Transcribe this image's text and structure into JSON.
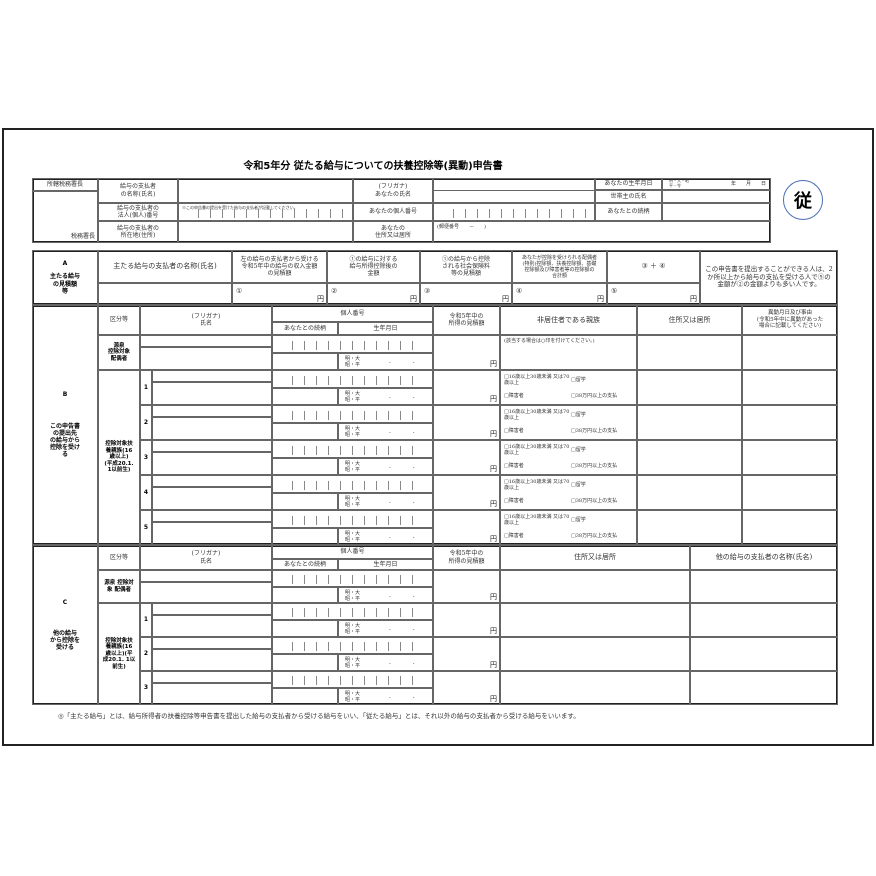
{
  "title": "令和5年分 従たる給与についての扶養控除等(異動)申告書",
  "stamp": "従",
  "colors": {
    "stamp_circle": "#4a6fb5",
    "border": "#222222"
  },
  "header": {
    "office_chief": "所轄税務署長",
    "tax_office_chief": "税務署長",
    "payer_name_label": "給与の支払者\nの名称(氏名)",
    "payer_number_label": "給与の支払者の\n法人(個人)番号",
    "payer_number_note": "※この申告書の提出を受けた給与の支払者が記載してください。",
    "payer_address_label": "給与の支払者の\n所在地(住所)",
    "your_name_label": "(フリガナ)\nあなたの氏名",
    "your_number_label": "あなたの個人番号",
    "your_address_label": "あなたの\n住所又は居所",
    "postal_label": "(郵便番号　　－　　)",
    "birth_label": "あなたの生年月日",
    "era_options": "明・大・昭\n平・令",
    "ymd": "年　　月　　日",
    "householder_label": "世帯主の氏名",
    "relation_label": "あなたとの続柄"
  },
  "section_a": {
    "letter": "A",
    "label": "主たる給与\nの見積額\n等",
    "payer_name_header": "主たる給与の支払者の名称(氏名)",
    "columns": [
      {
        "header": "左の給与の支払者から受ける\n令和5年中の給与の収入金額\nの見積額",
        "marker": "①"
      },
      {
        "header": "①の給与に対する\n給与所得控除後の\n金額",
        "marker": "②"
      },
      {
        "header": "①の給与から控除\nされる社会保険料\n等の見積額",
        "marker": "③"
      },
      {
        "header": "あなたが控除を受けられる配偶者\n(特別)控除額、扶養控除額、基礎\n控除額及び障害者等の控除額の\n合計額",
        "marker": "④"
      },
      {
        "header": "③ ＋ ④",
        "marker": "⑤"
      }
    ],
    "yen": "円",
    "note": "この申告書を提出することができる人は、2か所以上から給与の支払を受ける人で⑤の金額が②の金額よりも多い人です。"
  },
  "section_b": {
    "letter": "B",
    "label": "この申告書\nの提出先\nの給与から\n控除を受け\nる",
    "headers": {
      "category": "区分等",
      "name": "(フリガナ)\n氏名",
      "my_number": "個人番号",
      "relation": "あなたとの続柄",
      "birth": "生年月日",
      "income": "令和5年中の\n所得の見積額",
      "nonresident": "非居住者である親族",
      "address": "住所又は居所",
      "change": "異動月日及び事由\n(令和5年中に異動があった\n場合に記載してください)"
    },
    "spouse_label": "源泉\n控除対象\n配偶者",
    "spouse_note": "(該当する場合は○印を付けてください。)",
    "dependents_label": "控除対象扶\n養親族(16\n歳以上)\n(平成20.1.\n1以前生)",
    "era": "明・大\n昭・平",
    "yen": "円",
    "checkboxes": [
      "□16歳以上30歳未満 又は70歳以上",
      "□留学",
      "□障害者",
      "□38万円以上の支払"
    ],
    "rows": [
      "1",
      "2",
      "3",
      "4",
      "5"
    ]
  },
  "section_c": {
    "letter": "C",
    "label": "他の給与\nから控除を\n受ける",
    "headers": {
      "category": "区分等",
      "name": "(フリガナ)\n氏名",
      "my_number": "個人番号",
      "relation": "あなたとの続柄",
      "birth": "生年月日",
      "income": "令和5年中の\n所得の見積額",
      "address": "住所又は居所",
      "other_payer": "他の給与の支払者の名称(氏名)"
    },
    "spouse_label": "源泉 控除対\n象 配偶者",
    "dependents_label": "控除対象扶\n養親族(16\n歳以上)(平\n成20.1. 1以\n前生)",
    "era": "明・大\n昭・平",
    "yen": "円",
    "rows": [
      "1",
      "2",
      "3"
    ]
  },
  "footnote": "◎「主たる給与」とは、給与所得者の扶養控除等申告書を提出した給与の支払者から受ける給与をいい、「従たる給与」とは、それ以外の給与の支払者から受ける給与をいいます。"
}
